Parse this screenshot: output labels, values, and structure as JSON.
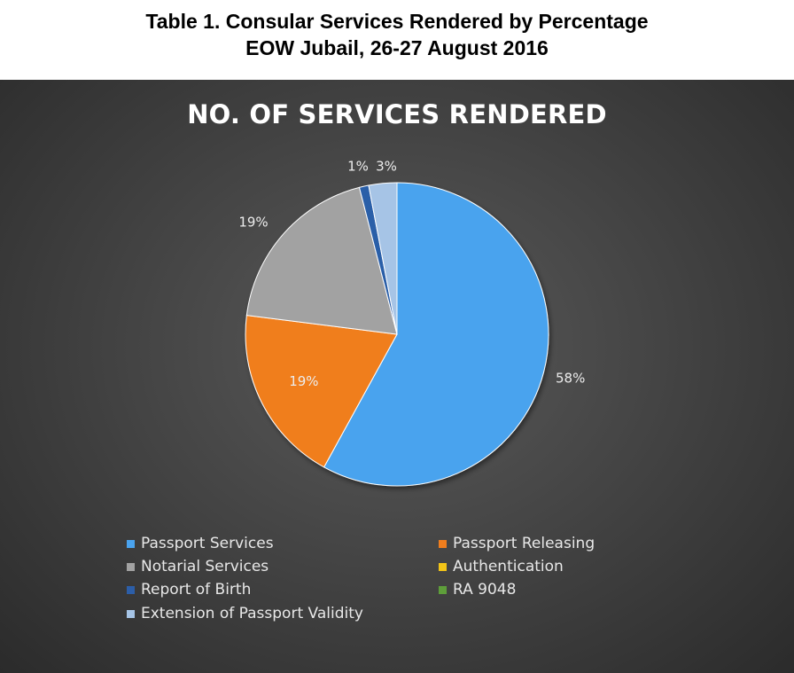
{
  "page_title": {
    "line1": "Table 1.  Consular Services Rendered by Percentage",
    "line2": "EOW Jubail, 26-27 August 2016"
  },
  "chart_data": {
    "type": "pie",
    "title": "NO. OF SERVICES RENDERED",
    "legend_position": "bottom",
    "slices": [
      {
        "name": "Passport Services",
        "value": 58,
        "label": "58%",
        "color": "#4aa3ee"
      },
      {
        "name": "Passport Releasing",
        "value": 19,
        "label": "19%",
        "color": "#f07e1e"
      },
      {
        "name": "Notarial Services",
        "value": 19,
        "label": "19%",
        "color": "#a2a2a2"
      },
      {
        "name": "Authentication",
        "value": 0,
        "label": "",
        "color": "#f2c418"
      },
      {
        "name": "Report of Birth",
        "value": 1,
        "label": "1%",
        "color": "#2c5ea8"
      },
      {
        "name": "RA 9048",
        "value": 0,
        "label": "",
        "color": "#5e9e3a"
      },
      {
        "name": "Extension of Passport Validity",
        "value": 3,
        "label": "3%",
        "color": "#a6c4e6"
      }
    ]
  }
}
